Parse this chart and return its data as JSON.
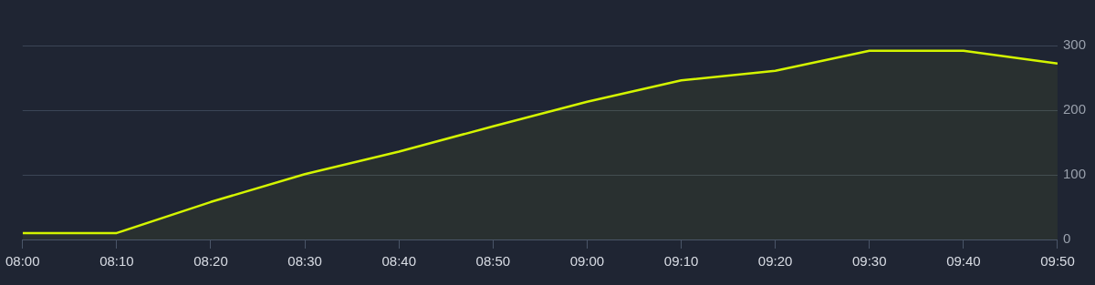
{
  "chart_data": {
    "type": "area",
    "x": [
      8,
      8.1667,
      8.3333,
      8.5,
      8.6667,
      8.8333,
      9,
      9.1667,
      9.3333,
      9.5,
      9.6667,
      9.8333
    ],
    "series": [
      {
        "color": "#d4f500",
        "values": [
          10,
          10,
          58,
          101,
          136,
          175,
          213,
          246,
          261,
          292,
          292,
          272
        ]
      }
    ],
    "xlim": [
      8,
      9.8333
    ],
    "xticks": [
      {
        "value": 8,
        "label": "08:00"
      },
      {
        "value": 8.1667,
        "label": "08:10"
      },
      {
        "value": 8.3333,
        "label": "08:20"
      },
      {
        "value": 8.5,
        "label": "08:30"
      },
      {
        "value": 8.6667,
        "label": "08:40"
      },
      {
        "value": 8.8333,
        "label": "08:50"
      },
      {
        "value": 9,
        "label": "09:00"
      },
      {
        "value": 9.1667,
        "label": "09:10"
      },
      {
        "value": 9.3333,
        "label": "09:20"
      },
      {
        "value": 9.5,
        "label": "09:30"
      },
      {
        "value": 9.6667,
        "label": "09:40"
      },
      {
        "value": 9.8333,
        "label": "09:50"
      }
    ],
    "ylim": [
      0,
      300
    ],
    "yticks": [
      0,
      100,
      200,
      300
    ],
    "grid": "y",
    "legend": false,
    "marker": "none",
    "line_style": "solid"
  }
}
